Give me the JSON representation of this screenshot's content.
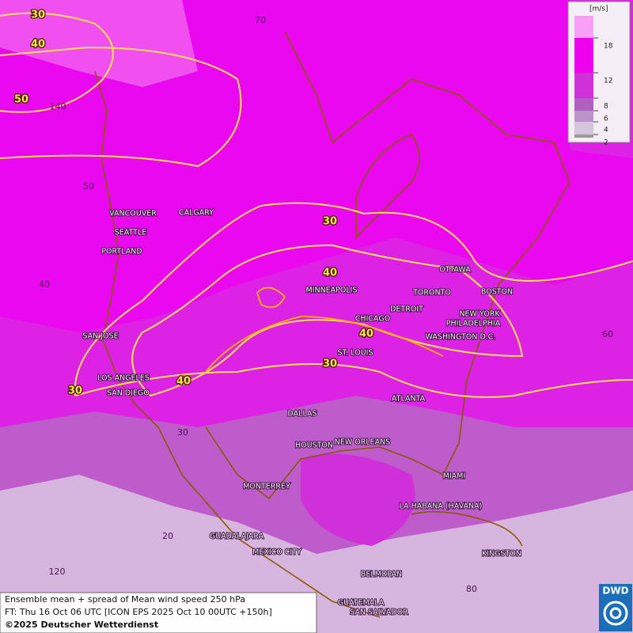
{
  "map": {
    "cities": [
      "VANCOUVER",
      "CALGARY",
      "SEATTLE",
      "PORTLAND",
      "SAN JOSE",
      "LOS ANGELES",
      "SAN DIEGO",
      "MINNEAPOLIS",
      "CHICAGO",
      "DETROIT",
      "TORONTO",
      "OTTAWA",
      "BOSTON",
      "NEW YORK",
      "PHILADELPHIA",
      "WASHINGTON D.C.",
      "ST. LOUIS",
      "ATLANTA",
      "DALLAS",
      "HOUSTON",
      "NEW ORLEANS",
      "MIAMI",
      "MONTERREY",
      "LA HABANA (HAVANA)",
      "GUADALAJARA",
      "MEXICO CITY",
      "KINGSTON",
      "BELMOPAN",
      "GUATEMALA",
      "SAN SALVADOR"
    ],
    "contour_labels": [
      30,
      40,
      50,
      30,
      40,
      40,
      30,
      40,
      30
    ],
    "grid_labels": [
      70,
      140,
      50,
      40,
      30,
      20,
      120,
      60,
      80
    ]
  },
  "legend": {
    "unit": "[m/s]",
    "ticks": [
      18,
      12,
      8,
      6,
      4,
      2
    ]
  },
  "footer": {
    "line1": "Ensemble mean + spread of Mean wind speed 250 hPa",
    "line2": "FT: Thu 16 Oct 06 UTC [ICON EPS 2025 Oct 10 00UTC +150h]",
    "line3": "©2025 Deutscher Wetterdienst"
  },
  "logo": "DWD"
}
